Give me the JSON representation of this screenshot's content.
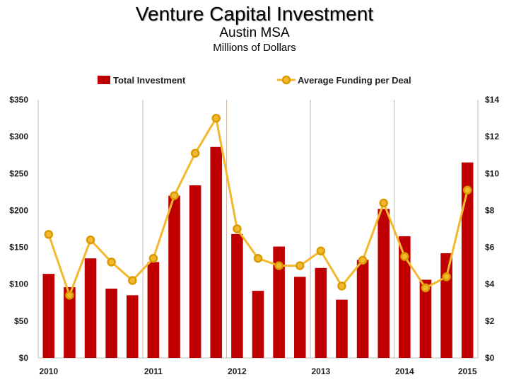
{
  "chart_data": {
    "type": "bar+line",
    "title": "Venture Capital Investment",
    "subtitle": "Austin MSA",
    "subtitle2": "Millions of Dollars",
    "x_tick_labels": [
      "2010",
      "2011",
      "2012",
      "2013",
      "2014",
      "2015"
    ],
    "y_left_ticks": [
      "$0",
      "$50",
      "$100",
      "$150",
      "$200",
      "$250",
      "$300",
      "$350"
    ],
    "y_right_ticks": [
      "$0",
      "$2",
      "$4",
      "$6",
      "$8",
      "$10",
      "$12",
      "$14"
    ],
    "ylim_left": [
      0,
      350
    ],
    "ylim_right": [
      0,
      14
    ],
    "legend_position": "top",
    "grid": false,
    "series": [
      {
        "name": "Total Investment",
        "kind": "bar",
        "axis": "left",
        "color": "#C00000",
        "values": [
          114,
          96,
          135,
          94,
          85,
          130,
          220,
          234,
          286,
          168,
          91,
          151,
          110,
          122,
          79,
          133,
          202,
          165,
          106,
          142,
          265
        ]
      },
      {
        "name": "Average Funding per Deal",
        "kind": "line",
        "axis": "right",
        "color": "#F2B82E",
        "marker_color": "#D99A00",
        "values": [
          6.7,
          3.4,
          6.4,
          5.2,
          4.2,
          5.4,
          8.8,
          11.1,
          13.0,
          7.0,
          5.4,
          5.0,
          5.0,
          5.8,
          3.9,
          5.3,
          8.4,
          5.5,
          3.8,
          4.4,
          9.1
        ]
      }
    ],
    "year_start_index": [
      0,
      5,
      9,
      13,
      17,
      21
    ]
  }
}
